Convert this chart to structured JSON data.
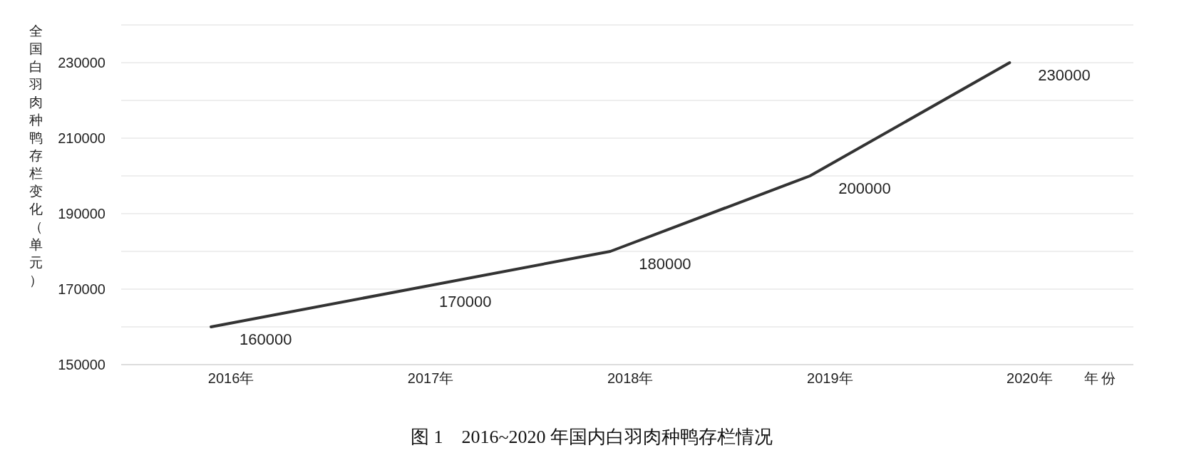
{
  "chart_data": {
    "type": "line",
    "title": "图 1　2016~2020 年国内白羽肉种鸭存栏情况",
    "xlabel": "年份",
    "ylabel": "全国白羽肉种鸭存栏变化（单元）",
    "categories": [
      "2016年",
      "2017年",
      "2018年",
      "2019年",
      "2020年"
    ],
    "series": [
      {
        "color": "#333333",
        "values": [
          160000,
          170000,
          180000,
          200000,
          230000
        ]
      }
    ],
    "ylim": [
      150000,
      240000
    ],
    "yticks": [
      150000,
      {
        "value": 160000,
        "label": null
      },
      170000,
      {
        "value": 180000,
        "label": null
      },
      190000,
      {
        "value": 200000,
        "label": null
      },
      210000,
      {
        "value": 220000,
        "label": null
      },
      230000,
      {
        "value": 240000,
        "label": null
      }
    ],
    "grid": "y",
    "data_labels": true,
    "marker": "none",
    "line_style": "solid"
  }
}
